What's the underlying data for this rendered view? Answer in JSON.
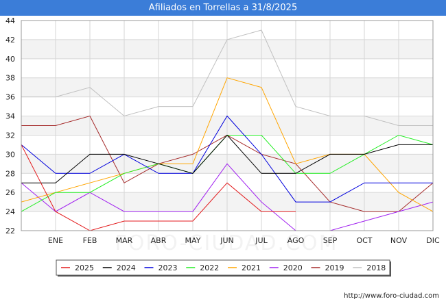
{
  "title": "Afiliados en Torrellas a 31/8/2025",
  "footer": "http://www.foro-ciudad.com",
  "watermark": "FORO-CIUDAD.COM",
  "chart_data": {
    "type": "line",
    "title": "Afiliados en Torrellas a 31/8/2025",
    "categories": [
      "",
      "ENE",
      "FEB",
      "MAR",
      "ABR",
      "MAY",
      "JUN",
      "JUL",
      "AGO",
      "SEP",
      "OCT",
      "NOV",
      "DIC"
    ],
    "ylim": [
      22,
      44
    ],
    "yticks": [
      22,
      24,
      26,
      28,
      30,
      32,
      34,
      36,
      38,
      40,
      42,
      44
    ],
    "grid": true,
    "legend_position": "bottom",
    "series": [
      {
        "name": "2025",
        "color": "#e31a1c",
        "values": [
          31,
          24,
          22,
          23,
          23,
          23,
          27,
          24,
          24,
          null,
          null,
          null,
          null
        ]
      },
      {
        "name": "2024",
        "color": "#000000",
        "values": [
          27,
          27,
          30,
          30,
          29,
          28,
          32,
          28,
          28,
          30,
          30,
          31,
          31
        ]
      },
      {
        "name": "2023",
        "color": "#0000dd",
        "values": [
          31,
          28,
          28,
          30,
          28,
          28,
          34,
          30,
          25,
          25,
          27,
          27,
          27
        ]
      },
      {
        "name": "2022",
        "color": "#22ee22",
        "values": [
          24,
          26,
          26,
          28,
          29,
          28,
          32,
          32,
          28,
          28,
          30,
          32,
          31
        ]
      },
      {
        "name": "2021",
        "color": "#ffa500",
        "values": [
          25,
          26,
          27,
          28,
          29,
          29,
          38,
          37,
          29,
          30,
          30,
          26,
          24
        ]
      },
      {
        "name": "2020",
        "color": "#a020f0",
        "values": [
          27,
          24,
          26,
          24,
          24,
          24,
          29,
          25,
          22,
          22,
          23,
          24,
          25
        ]
      },
      {
        "name": "2019",
        "color": "#a52a2a",
        "values": [
          33,
          33,
          34,
          27,
          29,
          30,
          32,
          30,
          29,
          25,
          24,
          24,
          27
        ]
      },
      {
        "name": "2018",
        "color": "#c0c0c0",
        "values": [
          36,
          36,
          37,
          34,
          35,
          35,
          42,
          43,
          35,
          34,
          34,
          33,
          33
        ]
      }
    ]
  }
}
